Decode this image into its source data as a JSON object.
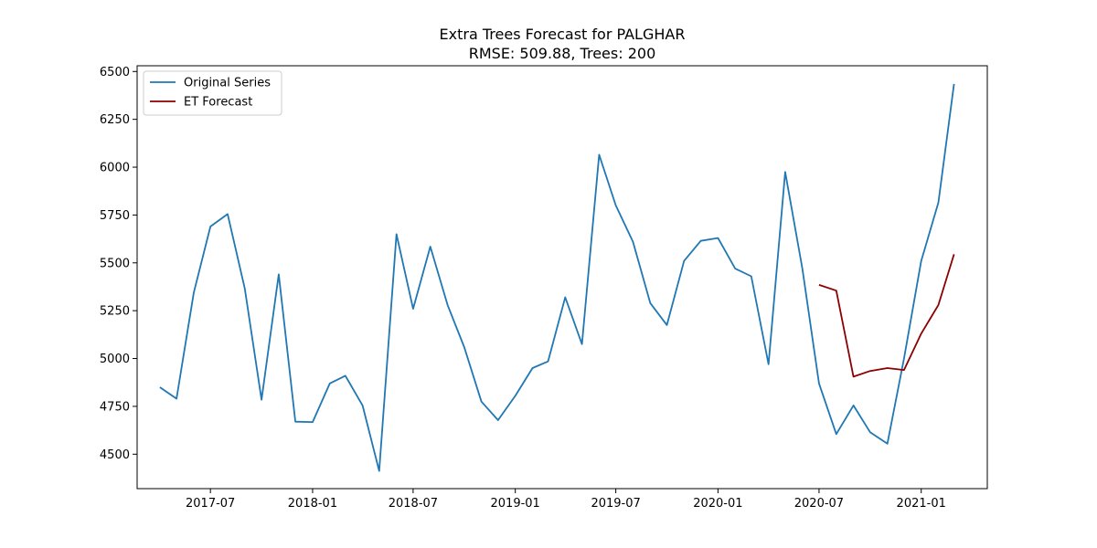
{
  "chart_data": {
    "type": "line",
    "title": "Extra Trees Forecast for PALGHAR",
    "subtitle": "RMSE: 509.88, Trees: 200",
    "xlabel": "",
    "ylabel": "",
    "xlim": [
      "2017-02-19",
      "2021-04-30"
    ],
    "ylim": [
      4320,
      6530
    ],
    "x_ticks": [
      "2017-07",
      "2018-01",
      "2018-07",
      "2019-01",
      "2019-07",
      "2020-01",
      "2020-07",
      "2021-01"
    ],
    "y_ticks": [
      "4500",
      "4750",
      "5000",
      "5250",
      "5500",
      "5750",
      "6000",
      "6250",
      "6500"
    ],
    "legend_position": "upper-left",
    "grid": false,
    "series": [
      {
        "name": "Original Series",
        "color": "#1f77b4",
        "x": [
          "2017-04",
          "2017-05",
          "2017-06",
          "2017-07",
          "2017-08",
          "2017-09",
          "2017-10",
          "2017-11",
          "2017-12",
          "2018-01",
          "2018-02",
          "2018-03",
          "2018-04",
          "2018-05",
          "2018-06",
          "2018-07",
          "2018-08",
          "2018-09",
          "2018-10",
          "2018-11",
          "2018-12",
          "2019-01",
          "2019-02",
          "2019-03",
          "2019-04",
          "2019-05",
          "2019-06",
          "2019-07",
          "2019-08",
          "2019-09",
          "2019-10",
          "2019-11",
          "2019-12",
          "2020-01",
          "2020-02",
          "2020-03",
          "2020-04",
          "2020-05",
          "2020-06",
          "2020-07",
          "2020-08",
          "2020-09",
          "2020-10",
          "2020-11",
          "2020-12",
          "2021-01",
          "2021-02",
          "2021-03"
        ],
        "values": [
          4850,
          4790,
          5345,
          5690,
          5755,
          5365,
          4785,
          5440,
          4670,
          4668,
          4870,
          4910,
          4755,
          4412,
          5650,
          5260,
          5585,
          5280,
          5060,
          4775,
          4678,
          4805,
          4950,
          4985,
          5320,
          5075,
          6065,
          5800,
          5610,
          5290,
          5175,
          5510,
          5615,
          5630,
          5470,
          5430,
          4970,
          5975,
          5470,
          4870,
          4605,
          4755,
          4615,
          4555,
          5000,
          5510,
          5815,
          6435
        ]
      },
      {
        "name": "ET Forecast",
        "color": "#8b0000",
        "x": [
          "2020-07",
          "2020-08",
          "2020-09",
          "2020-10",
          "2020-11",
          "2020-12",
          "2021-01",
          "2021-02",
          "2021-03"
        ],
        "values": [
          5385,
          5355,
          4905,
          4935,
          4950,
          4940,
          5130,
          5280,
          5545
        ]
      }
    ]
  }
}
